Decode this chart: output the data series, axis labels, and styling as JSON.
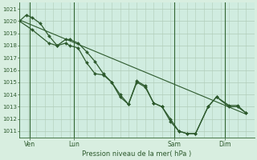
{
  "xlabel": "Pression niveau de la mer( hPa )",
  "bg_color": "#d8eee0",
  "plot_bg_color": "#d0ece0",
  "grid_color": "#b0ccb8",
  "vline_color": "#336633",
  "line_color": "#2d5a2d",
  "marker_color": "#2d5a2d",
  "tick_color": "#2d5a2d",
  "label_color": "#2d5a2d",
  "ylim": [
    1010.5,
    1021.5
  ],
  "yticks": [
    1011,
    1012,
    1013,
    1014,
    1015,
    1016,
    1017,
    1018,
    1019,
    1020,
    1021
  ],
  "xlim": [
    0,
    28
  ],
  "day_positions": [
    1.2,
    6.5,
    18.5,
    24.5
  ],
  "day_labels": [
    "Ven",
    "Lun",
    "Sam",
    "Dim"
  ],
  "vline_positions": [
    1.2,
    6.5,
    18.5,
    24.5
  ],
  "series1": [
    [
      0.0,
      1020.0
    ],
    [
      0.8,
      1020.5
    ],
    [
      1.5,
      1020.3
    ],
    [
      2.5,
      1019.8
    ],
    [
      3.5,
      1018.8
    ],
    [
      4.5,
      1018.0
    ],
    [
      5.5,
      1018.5
    ],
    [
      6.0,
      1018.5
    ],
    [
      7.0,
      1018.2
    ],
    [
      8.0,
      1017.5
    ],
    [
      9.0,
      1016.7
    ],
    [
      10.0,
      1015.7
    ],
    [
      11.0,
      1015.0
    ],
    [
      12.0,
      1013.8
    ],
    [
      13.0,
      1013.2
    ],
    [
      14.0,
      1015.1
    ],
    [
      15.0,
      1014.7
    ],
    [
      16.0,
      1013.3
    ],
    [
      17.0,
      1013.0
    ],
    [
      18.0,
      1011.8
    ],
    [
      19.0,
      1011.0
    ],
    [
      20.0,
      1010.8
    ],
    [
      21.0,
      1010.8
    ],
    [
      22.5,
      1013.0
    ],
    [
      23.5,
      1013.8
    ],
    [
      25.0,
      1013.1
    ],
    [
      26.0,
      1013.1
    ],
    [
      27.0,
      1012.5
    ]
  ],
  "series2": [
    [
      0.0,
      1020.0
    ],
    [
      1.5,
      1019.3
    ],
    [
      3.5,
      1018.2
    ],
    [
      4.5,
      1018.0
    ],
    [
      5.5,
      1018.2
    ],
    [
      6.0,
      1018.0
    ],
    [
      7.0,
      1017.8
    ],
    [
      8.0,
      1016.6
    ],
    [
      9.0,
      1015.7
    ],
    [
      10.0,
      1015.6
    ],
    [
      11.0,
      1015.0
    ],
    [
      12.0,
      1014.0
    ],
    [
      13.0,
      1013.2
    ],
    [
      14.0,
      1015.0
    ],
    [
      15.0,
      1014.6
    ],
    [
      16.0,
      1013.3
    ],
    [
      17.0,
      1013.0
    ],
    [
      18.0,
      1012.0
    ],
    [
      19.0,
      1011.0
    ],
    [
      20.0,
      1010.8
    ],
    [
      21.0,
      1010.8
    ],
    [
      22.5,
      1013.0
    ],
    [
      23.5,
      1013.8
    ],
    [
      25.0,
      1013.0
    ],
    [
      26.0,
      1013.0
    ],
    [
      27.0,
      1012.5
    ]
  ],
  "series_straight": [
    [
      0.0,
      1020.1
    ],
    [
      27.0,
      1012.4
    ]
  ]
}
